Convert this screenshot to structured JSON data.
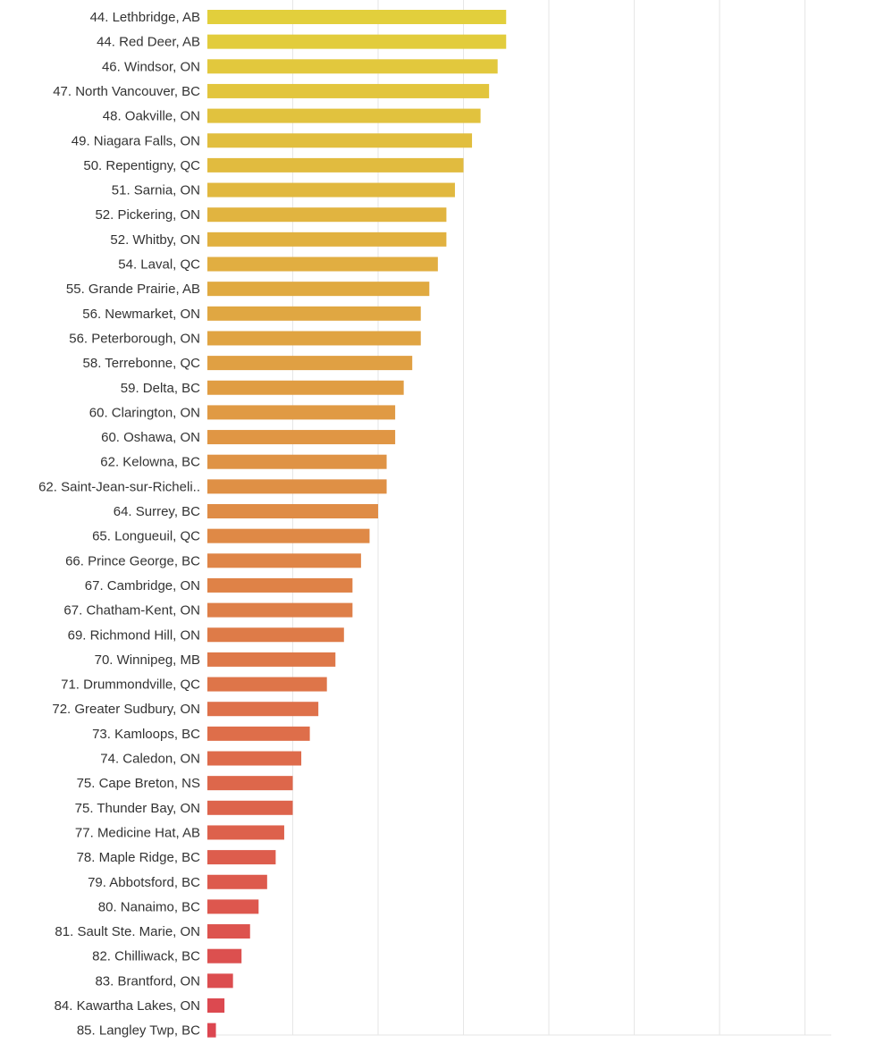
{
  "chart_data": {
    "type": "bar",
    "orientation": "horizontal",
    "grid": true,
    "categories": [
      "44. Lethbridge, AB",
      "44. Red Deer, AB",
      "46. Windsor, ON",
      "47. North Vancouver, BC",
      "48. Oakville, ON",
      "49. Niagara Falls, ON",
      "50. Repentigny, QC",
      "51. Sarnia, ON",
      "52. Pickering, ON",
      "52. Whitby, ON",
      "54. Laval, QC",
      "55. Grande Prairie, AB",
      "56. Newmarket, ON",
      "56. Peterborough, ON",
      "58. Terrebonne, QC",
      "59. Delta, BC",
      "60. Clarington, ON",
      "60. Oshawa, ON",
      "62. Kelowna, BC",
      "62. Saint-Jean-sur-Richeli..",
      "64. Surrey, BC",
      "65. Longueuil, QC",
      "66. Prince George, BC",
      "67. Cambridge, ON",
      "67. Chatham-Kent, ON",
      "69. Richmond Hill, ON",
      "70. Winnipeg, MB",
      "71. Drummondville, QC",
      "72. Greater Sudbury, ON",
      "73. Kamloops, BC",
      "74. Caledon, ON",
      "75. Cape Breton, NS",
      "75. Thunder Bay, ON",
      "77. Medicine Hat, AB",
      "78. Maple Ridge, BC",
      "79. Abbotsford, BC",
      "80. Nanaimo, BC",
      "81. Sault Ste. Marie, ON",
      "82. Chilliwack, BC",
      "83. Brantford, ON",
      "84. Kawartha Lakes, ON",
      "85. Langley Twp, BC"
    ],
    "values": [
      35,
      35,
      34,
      33,
      32,
      31,
      30,
      29,
      28,
      28,
      27,
      26,
      25,
      25,
      24,
      23,
      22,
      22,
      21,
      21,
      20,
      19,
      18,
      17,
      17,
      16,
      15,
      14,
      13,
      12,
      11,
      10,
      10,
      9,
      8,
      7,
      6,
      5,
      4,
      3,
      2,
      1
    ],
    "xlim": [
      0,
      73
    ],
    "x_gridlines": [
      0,
      10,
      20,
      30,
      40,
      50,
      60,
      70
    ],
    "color_start": "#E2CF3C",
    "color_end": "#DC4650",
    "gridline_color": "#E6E6E6"
  }
}
